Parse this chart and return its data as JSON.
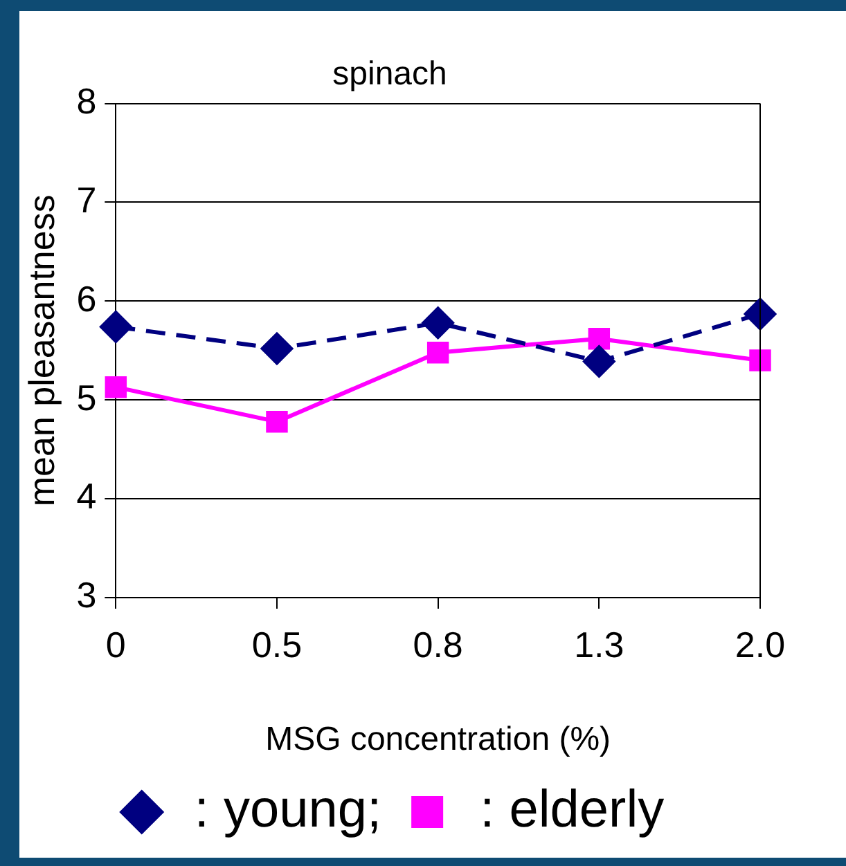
{
  "chart_data": {
    "type": "line",
    "title": "spinach",
    "xlabel": "MSG concentration (%)",
    "ylabel": "mean pleasantness",
    "categories": [
      "0",
      "0.5",
      "0.8",
      "1.3",
      "2.0"
    ],
    "series": [
      {
        "name": ": young;",
        "color": "#000080",
        "values": [
          5.74,
          5.52,
          5.78,
          5.39,
          5.87
        ],
        "marker": "diamond",
        "line_style": "dashed"
      },
      {
        "name": ": elderly",
        "color": "#ff00ff",
        "values": [
          5.13,
          4.78,
          5.48,
          5.62,
          5.4
        ],
        "marker": "square",
        "line_style": "solid"
      }
    ],
    "ylim": [
      3,
      8
    ],
    "yticks": [
      3,
      4,
      5,
      6,
      7,
      8
    ],
    "grid": "y",
    "legend": "bottom"
  }
}
